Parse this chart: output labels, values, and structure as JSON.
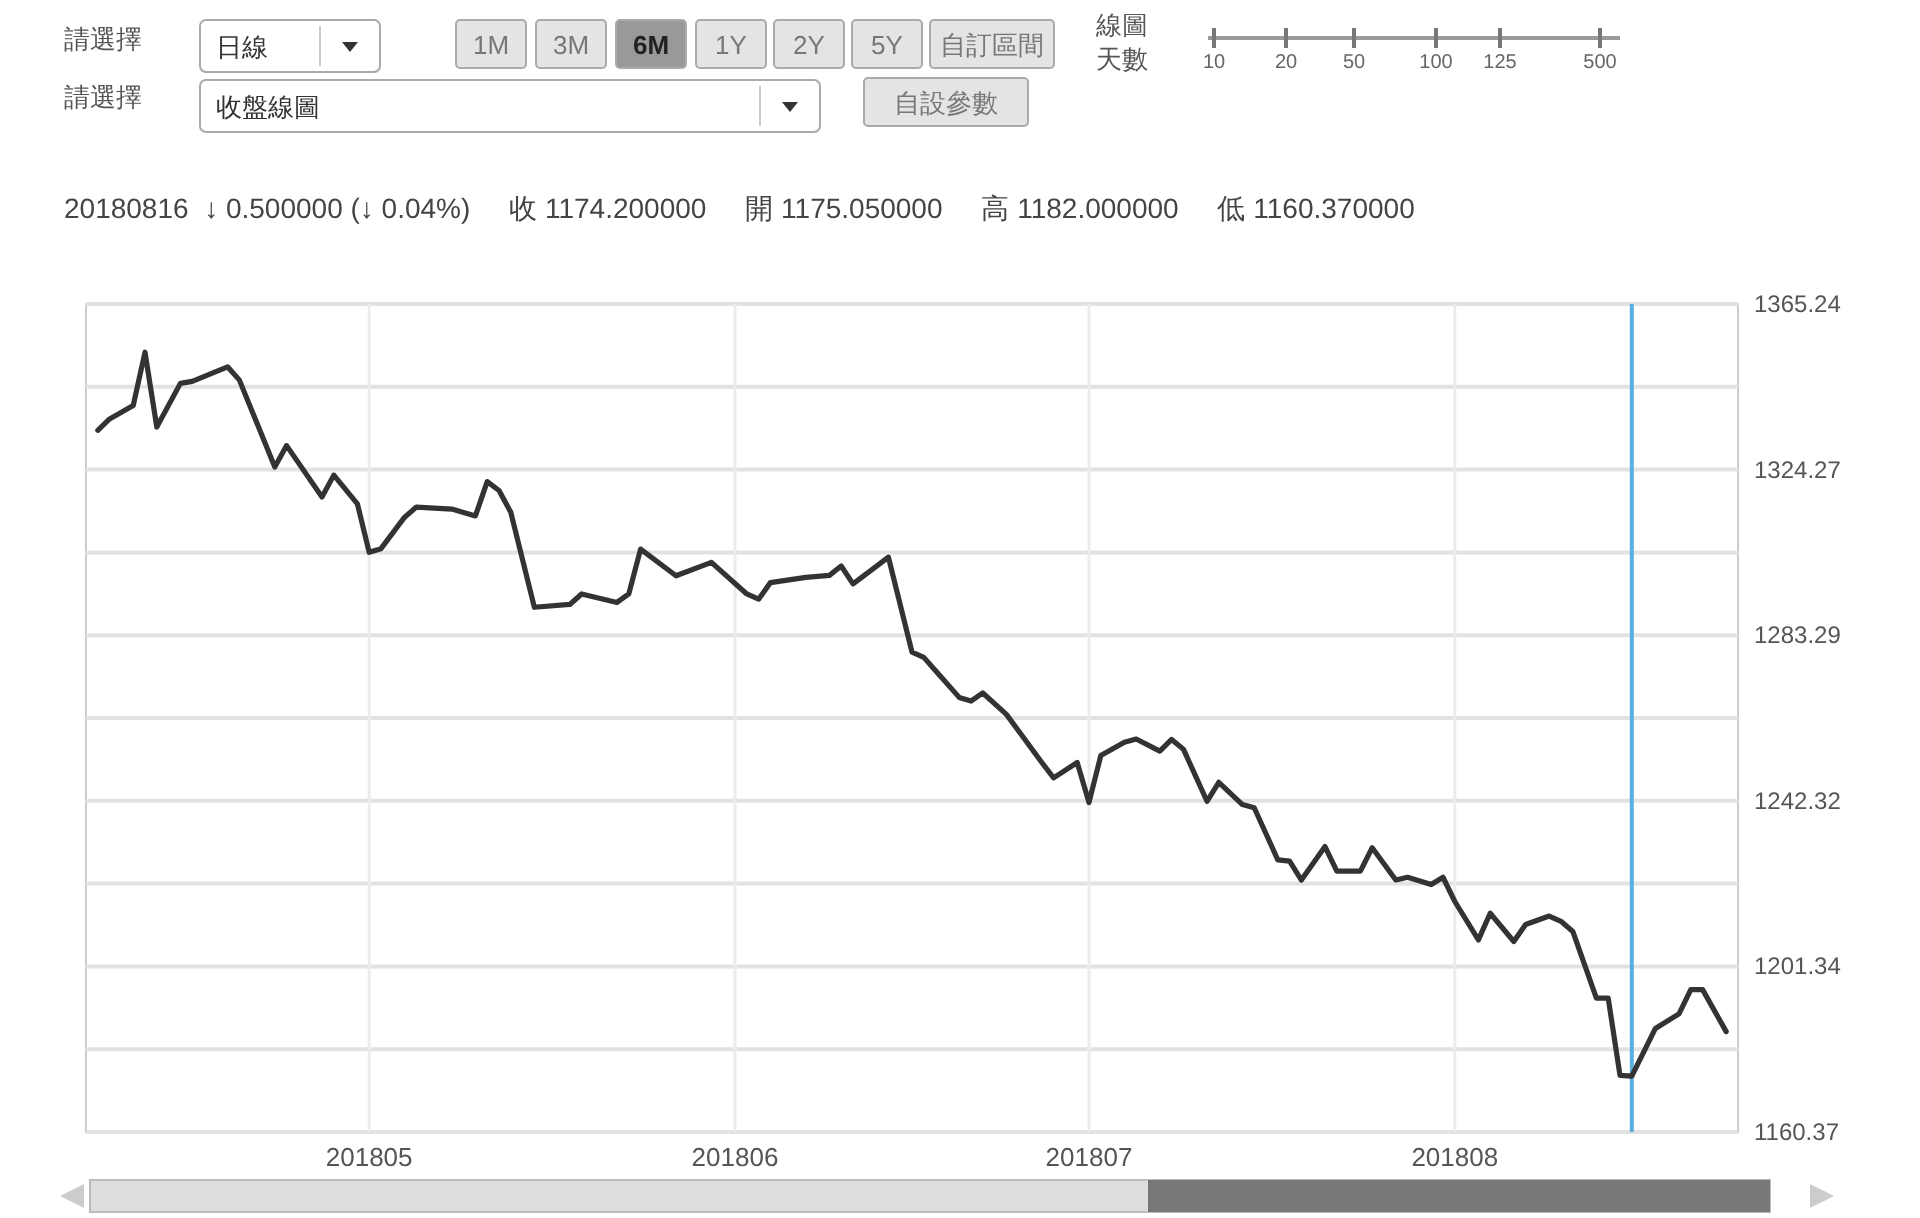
{
  "chart_data": {
    "type": "line",
    "subtitle": "20180816  ↓ 0.500000 (↓ 0.04%)     收 1174.200000     開 1175.050000     高 1182.000000     低 1160.370000",
    "annotations": [
      "請選擇",
      "日線",
      "1M",
      "3M",
      "6M",
      "1Y",
      "2Y",
      "5Y",
      "自訂區間",
      "線圖",
      "天數",
      "10",
      "20",
      "50",
      "100",
      "125",
      "500",
      "請選擇",
      "收盤線圖",
      "自設參數"
    ],
    "xlim": [
      "2018-04-07",
      "2018-08-25"
    ],
    "xticks": [
      {
        "value": "2018-05-01",
        "label": "201805"
      },
      {
        "value": "2018-06-01",
        "label": "201806"
      },
      {
        "value": "2018-07-01",
        "label": "201807"
      },
      {
        "value": "2018-08-01",
        "label": "201808"
      }
    ],
    "ylim": [
      1160.37,
      1365.24
    ],
    "yticks": [
      1160.37,
      {
        "value": 1180.855,
        "label": null
      },
      1201.34,
      {
        "value": 1221.83,
        "label": null
      },
      1242.32,
      {
        "value": 1262.805,
        "label": null
      },
      1283.29,
      {
        "value": 1303.78,
        "label": null
      },
      1324.27,
      {
        "value": 1344.755,
        "label": null
      },
      1365.24
    ],
    "grid": true,
    "ref_lines": [
      {
        "axis": "x",
        "value": "2018-08-16",
        "color": "#5aaee0"
      }
    ],
    "series": [
      {
        "color": "#333333",
        "x": [
          "2018-04-08",
          "2018-04-09",
          "2018-04-11",
          "2018-04-12",
          "2018-04-13",
          "2018-04-15",
          "2018-04-16",
          "2018-04-19",
          "2018-04-20",
          "2018-04-23",
          "2018-04-24",
          "2018-04-27",
          "2018-04-28",
          "2018-04-30",
          "2018-05-01",
          "2018-05-02",
          "2018-05-04",
          "2018-05-05",
          "2018-05-08",
          "2018-05-10",
          "2018-05-11",
          "2018-05-12",
          "2018-05-13",
          "2018-05-15",
          "2018-05-18",
          "2018-05-19",
          "2018-05-22",
          "2018-05-23",
          "2018-05-24",
          "2018-05-27",
          "2018-05-30",
          "2018-06-02",
          "2018-06-03",
          "2018-06-04",
          "2018-06-07",
          "2018-06-09",
          "2018-06-10",
          "2018-06-11",
          "2018-06-13",
          "2018-06-14",
          "2018-06-16",
          "2018-06-17",
          "2018-06-18",
          "2018-06-20",
          "2018-06-21",
          "2018-06-22",
          "2018-06-24",
          "2018-06-27",
          "2018-06-28",
          "2018-06-30",
          "2018-07-01",
          "2018-07-02",
          "2018-07-04",
          "2018-07-05",
          "2018-07-07",
          "2018-07-08",
          "2018-07-09",
          "2018-07-11",
          "2018-07-12",
          "2018-07-14",
          "2018-07-15",
          "2018-07-17",
          "2018-07-18",
          "2018-07-19",
          "2018-07-21",
          "2018-07-22",
          "2018-07-24",
          "2018-07-25",
          "2018-07-27",
          "2018-07-28",
          "2018-07-30",
          "2018-07-31",
          "2018-08-01",
          "2018-08-03",
          "2018-08-04",
          "2018-08-06",
          "2018-08-07",
          "2018-08-09",
          "2018-08-10",
          "2018-08-11",
          "2018-08-13",
          "2018-08-14",
          "2018-08-15",
          "2018-08-16",
          "2018-08-18",
          "2018-08-20",
          "2018-08-21",
          "2018-08-22",
          "2018-08-24"
        ],
        "values": [
          1334.0,
          1336.8,
          1340.1,
          1353.3,
          1334.8,
          1345.6,
          1346.1,
          1349.7,
          1346.4,
          1324.9,
          1330.2,
          1317.5,
          1322.9,
          1315.8,
          1303.8,
          1304.7,
          1312.5,
          1315.0,
          1314.5,
          1312.8,
          1321.3,
          1319.1,
          1313.7,
          1290.2,
          1290.9,
          1293.5,
          1291.4,
          1293.5,
          1304.6,
          1298.0,
          1301.3,
          1293.5,
          1292.2,
          1296.3,
          1297.6,
          1298.1,
          1300.4,
          1296.0,
          1300.4,
          1302.6,
          1279.1,
          1277.8,
          1274.5,
          1267.9,
          1267.0,
          1269.0,
          1263.7,
          1251.8,
          1248.0,
          1251.8,
          1241.9,
          1253.5,
          1256.8,
          1257.6,
          1254.6,
          1257.5,
          1255.1,
          1242.2,
          1246.9,
          1241.4,
          1240.6,
          1227.7,
          1227.4,
          1222.7,
          1231.0,
          1224.9,
          1224.9,
          1230.7,
          1222.7,
          1223.4,
          1221.6,
          1223.4,
          1217.4,
          1207.9,
          1214.5,
          1207.5,
          1211.7,
          1213.8,
          1212.5,
          1210.0,
          1193.5,
          1193.5,
          1174.4,
          1174.2,
          1186.0,
          1189.6,
          1195.6,
          1195.6,
          1185.2
        ]
      }
    ]
  }
}
